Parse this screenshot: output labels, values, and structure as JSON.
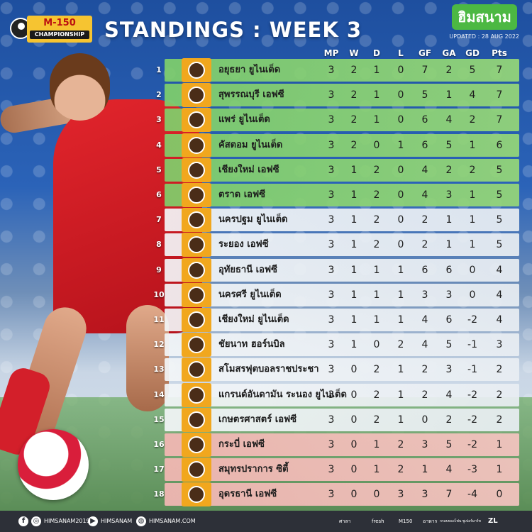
{
  "header": {
    "league_logo_top": "M-150",
    "league_logo_bottom": "CHAMPIONSHIP",
    "title": "STANDINGS : WEEK 3",
    "brand": "ฮิมสนาม",
    "updated": "UPDATED : 28 AUG 2022"
  },
  "columns": [
    "MP",
    "W",
    "D",
    "L",
    "GF",
    "GA",
    "GD",
    "Pts"
  ],
  "colors": {
    "green_band": "#7fcf6b",
    "white_band": "#f3f6f8",
    "red_band": "#f4b7b4",
    "crest_bg": "#f1a71e"
  },
  "rows": [
    {
      "pos": "1",
      "team": "อยุธยา ยูไนเต็ด",
      "mp": "3",
      "w": "2",
      "d": "1",
      "l": "0",
      "gf": "7",
      "ga": "2",
      "gd": "5",
      "pts": "7",
      "zone": "green"
    },
    {
      "pos": "2",
      "team": "สุพรรณบุรี เอฟซี",
      "mp": "3",
      "w": "2",
      "d": "1",
      "l": "0",
      "gf": "5",
      "ga": "1",
      "gd": "4",
      "pts": "7",
      "zone": "green"
    },
    {
      "pos": "3",
      "team": "แพร่ ยูไนเต็ด",
      "mp": "3",
      "w": "2",
      "d": "1",
      "l": "0",
      "gf": "6",
      "ga": "4",
      "gd": "2",
      "pts": "7",
      "zone": "green"
    },
    {
      "pos": "4",
      "team": "คัสตอม ยูไนเต็ด",
      "mp": "3",
      "w": "2",
      "d": "0",
      "l": "1",
      "gf": "6",
      "ga": "5",
      "gd": "1",
      "pts": "6",
      "zone": "green"
    },
    {
      "pos": "5",
      "team": "เชียงใหม่ เอฟซี",
      "mp": "3",
      "w": "1",
      "d": "2",
      "l": "0",
      "gf": "4",
      "ga": "2",
      "gd": "2",
      "pts": "5",
      "zone": "green"
    },
    {
      "pos": "6",
      "team": "ตราด เอฟซี",
      "mp": "3",
      "w": "1",
      "d": "2",
      "l": "0",
      "gf": "4",
      "ga": "3",
      "gd": "1",
      "pts": "5",
      "zone": "green"
    },
    {
      "pos": "7",
      "team": "นครปฐม ยูไนเต็ด",
      "mp": "3",
      "w": "1",
      "d": "2",
      "l": "0",
      "gf": "2",
      "ga": "1",
      "gd": "1",
      "pts": "5",
      "zone": "white"
    },
    {
      "pos": "8",
      "team": "ระยอง เอฟซี",
      "mp": "3",
      "w": "1",
      "d": "2",
      "l": "0",
      "gf": "2",
      "ga": "1",
      "gd": "1",
      "pts": "5",
      "zone": "white"
    },
    {
      "pos": "9",
      "team": "อุทัยธานี เอฟซี",
      "mp": "3",
      "w": "1",
      "d": "1",
      "l": "1",
      "gf": "6",
      "ga": "6",
      "gd": "0",
      "pts": "4",
      "zone": "white"
    },
    {
      "pos": "10",
      "team": "นครศรี ยูไนเต็ด",
      "mp": "3",
      "w": "1",
      "d": "1",
      "l": "1",
      "gf": "3",
      "ga": "3",
      "gd": "0",
      "pts": "4",
      "zone": "white"
    },
    {
      "pos": "11",
      "team": "เชียงใหม่ ยูไนเต็ด",
      "mp": "3",
      "w": "1",
      "d": "1",
      "l": "1",
      "gf": "4",
      "ga": "6",
      "gd": "-2",
      "pts": "4",
      "zone": "white"
    },
    {
      "pos": "12",
      "team": "ชัยนาท ฮอร์นบิล",
      "mp": "3",
      "w": "1",
      "d": "0",
      "l": "2",
      "gf": "4",
      "ga": "5",
      "gd": "-1",
      "pts": "3",
      "zone": "white"
    },
    {
      "pos": "13",
      "team": "สโมสรฟุตบอลราชประชา",
      "mp": "3",
      "w": "0",
      "d": "2",
      "l": "1",
      "gf": "2",
      "ga": "3",
      "gd": "-1",
      "pts": "2",
      "zone": "white"
    },
    {
      "pos": "14",
      "team": "แกรนด์อันดามัน ระนอง ยูไนเต็ด",
      "mp": "3",
      "w": "0",
      "d": "2",
      "l": "1",
      "gf": "2",
      "ga": "4",
      "gd": "-2",
      "pts": "2",
      "zone": "white"
    },
    {
      "pos": "15",
      "team": "เกษตรศาสตร์ เอฟซี",
      "mp": "3",
      "w": "0",
      "d": "2",
      "l": "1",
      "gf": "0",
      "ga": "2",
      "gd": "-2",
      "pts": "2",
      "zone": "white"
    },
    {
      "pos": "16",
      "team": "กระบี่ เอฟซี",
      "mp": "3",
      "w": "0",
      "d": "1",
      "l": "2",
      "gf": "3",
      "ga": "5",
      "gd": "-2",
      "pts": "1",
      "zone": "red"
    },
    {
      "pos": "17",
      "team": "สมุทรปราการ ซิตี้",
      "mp": "3",
      "w": "0",
      "d": "1",
      "l": "2",
      "gf": "1",
      "ga": "4",
      "gd": "-3",
      "pts": "1",
      "zone": "red"
    },
    {
      "pos": "18",
      "team": "อุดรธานี เอฟซี",
      "mp": "3",
      "w": "0",
      "d": "0",
      "l": "3",
      "gf": "3",
      "ga": "7",
      "gd": "-4",
      "pts": "0",
      "zone": "red"
    }
  ],
  "footer": {
    "facebook_icon": "facebook-icon",
    "instagram_handle": "HIMSANAM2019",
    "youtube_handle": "HIMSANAM",
    "website": "HIMSANAM.COM",
    "sponsors": [
      "ศาลา",
      "fresh",
      "M150",
      "อาหาร",
      "กรอบทองโฟน ซูเปอร์มาร์ท",
      "ZL"
    ]
  }
}
